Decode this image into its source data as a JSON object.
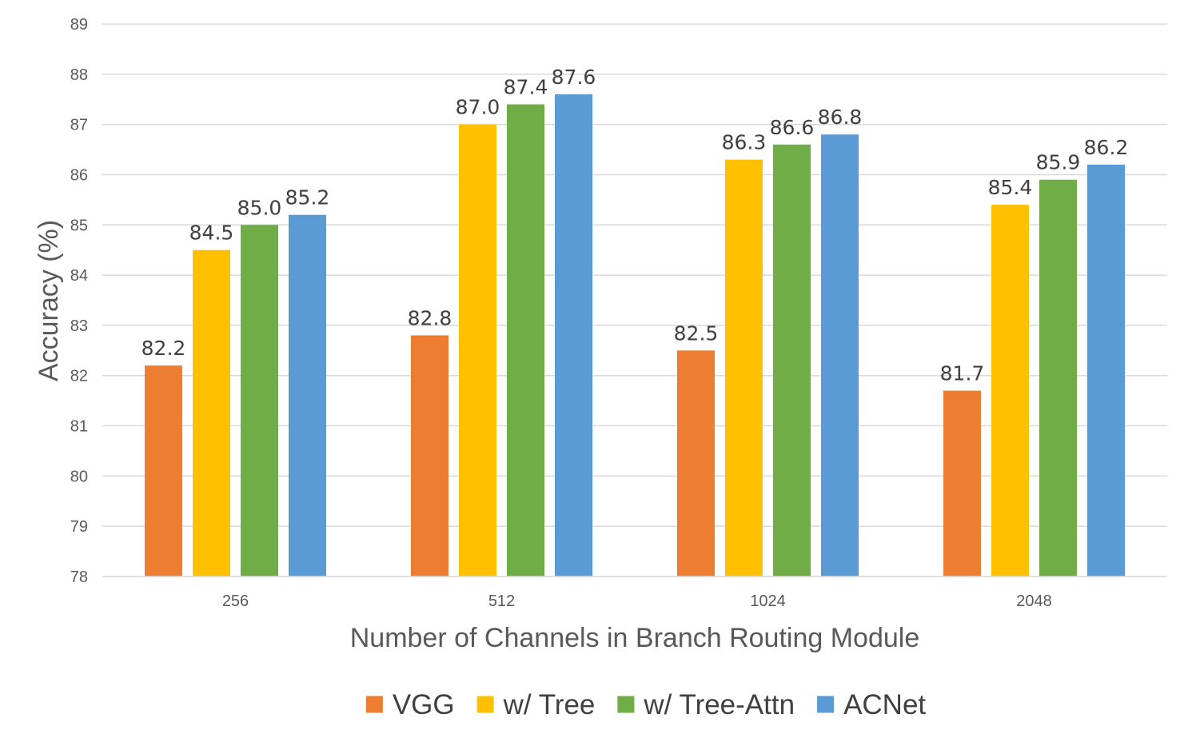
{
  "chart_data": {
    "type": "bar",
    "title": "",
    "xlabel": "Number of Channels in Branch Routing Module",
    "ylabel": "Accuracy (%)",
    "ylim": [
      78,
      89
    ],
    "ytick_step": 1,
    "yticks": [
      "78",
      "79",
      "80",
      "81",
      "82",
      "83",
      "84",
      "85",
      "86",
      "87",
      "88",
      "89"
    ],
    "grid": true,
    "legend_position": "bottom",
    "categories": [
      "256",
      "512",
      "1024",
      "2048"
    ],
    "series": [
      {
        "name": "VGG",
        "color": "#ED7D31",
        "values": [
          82.2,
          82.8,
          82.5,
          81.7
        ],
        "labels": [
          "82.2",
          "82.8",
          "82.5",
          "81.7"
        ]
      },
      {
        "name": "w/ Tree",
        "color": "#FFC000",
        "values": [
          84.5,
          87.0,
          86.3,
          85.4
        ],
        "labels": [
          "84.5",
          "87.0",
          "86.3",
          "85.4"
        ]
      },
      {
        "name": "w/ Tree-Attn",
        "color": "#70AD47",
        "values": [
          85.0,
          87.4,
          86.6,
          85.9
        ],
        "labels": [
          "85.0",
          "87.4",
          "86.6",
          "85.9"
        ]
      },
      {
        "name": "ACNet",
        "color": "#5B9BD5",
        "values": [
          85.2,
          87.6,
          86.8,
          86.2
        ],
        "labels": [
          "85.2",
          "87.6",
          "86.8",
          "86.2"
        ]
      }
    ]
  }
}
